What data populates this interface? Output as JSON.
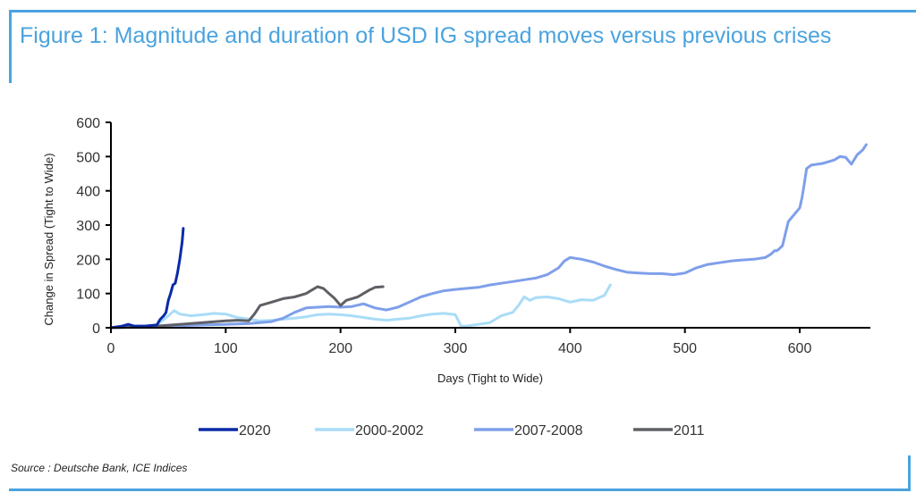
{
  "figure": {
    "title": "Figure 1: Magnitude and duration of USD IG spread moves versus previous crises",
    "source": "Source : Deutsche Bank, ICE Indices"
  },
  "colors": {
    "frame": "#4aa3df",
    "title": "#4aa3df"
  },
  "chart_data": {
    "type": "line",
    "title": "Magnitude and duration of USD IG spread moves versus previous crises",
    "xlabel": "Days (Tight to Wide)",
    "ylabel": "Change in Spread (Tight to Wide)",
    "xlim": [
      0,
      660
    ],
    "ylim": [
      0,
      600
    ],
    "xticks": [
      0,
      100,
      200,
      300,
      400,
      500,
      600
    ],
    "yticks": [
      0,
      100,
      200,
      300,
      400,
      500,
      600
    ],
    "grid": false,
    "legend_position": "bottom",
    "series": [
      {
        "name": "2000-2002",
        "color": "#a9dcf7",
        "x": [
          0,
          20,
          40,
          50,
          55,
          60,
          70,
          80,
          90,
          100,
          110,
          120,
          130,
          140,
          150,
          160,
          170,
          180,
          190,
          200,
          210,
          220,
          230,
          240,
          250,
          260,
          270,
          280,
          290,
          300,
          305,
          310,
          320,
          330,
          340,
          350,
          355,
          360,
          365,
          370,
          380,
          390,
          400,
          410,
          420,
          430,
          435
        ],
        "y": [
          0,
          2,
          8,
          35,
          50,
          40,
          35,
          38,
          42,
          40,
          30,
          25,
          20,
          22,
          25,
          28,
          32,
          38,
          40,
          38,
          35,
          30,
          25,
          22,
          25,
          28,
          35,
          40,
          42,
          38,
          5,
          5,
          10,
          15,
          35,
          45,
          65,
          90,
          80,
          88,
          90,
          85,
          75,
          82,
          80,
          95,
          125
        ]
      },
      {
        "name": "2007-2008",
        "color": "#7f9fea",
        "x": [
          0,
          20,
          50,
          80,
          100,
          120,
          140,
          150,
          160,
          170,
          180,
          190,
          200,
          210,
          220,
          230,
          240,
          250,
          260,
          270,
          280,
          290,
          300,
          310,
          320,
          330,
          340,
          350,
          360,
          370,
          380,
          390,
          395,
          400,
          410,
          420,
          430,
          440,
          450,
          460,
          470,
          480,
          490,
          500,
          510,
          520,
          530,
          540,
          550,
          560,
          570,
          575,
          578,
          580,
          582,
          585,
          590,
          595,
          600,
          602,
          604,
          606,
          610,
          620,
          630,
          635,
          640,
          645,
          650,
          655,
          658
        ],
        "y": [
          0,
          2,
          5,
          8,
          10,
          12,
          18,
          28,
          45,
          58,
          60,
          62,
          60,
          62,
          70,
          58,
          52,
          60,
          75,
          90,
          100,
          108,
          112,
          115,
          118,
          125,
          130,
          135,
          140,
          145,
          155,
          175,
          195,
          205,
          200,
          192,
          180,
          170,
          162,
          160,
          158,
          158,
          155,
          160,
          175,
          185,
          190,
          195,
          198,
          200,
          205,
          215,
          225,
          225,
          230,
          240,
          310,
          330,
          350,
          380,
          420,
          465,
          475,
          480,
          490,
          500,
          498,
          478,
          505,
          520,
          535
        ]
      },
      {
        "name": "2011",
        "color": "#5f6066",
        "x": [
          0,
          20,
          40,
          60,
          80,
          100,
          110,
          120,
          125,
          130,
          140,
          150,
          160,
          170,
          175,
          180,
          185,
          190,
          195,
          200,
          205,
          210,
          215,
          220,
          225,
          230,
          237
        ],
        "y": [
          0,
          2,
          5,
          10,
          15,
          20,
          22,
          20,
          40,
          65,
          75,
          85,
          90,
          100,
          110,
          120,
          115,
          100,
          85,
          65,
          80,
          85,
          90,
          100,
          110,
          118,
          120
        ]
      },
      {
        "name": "2020",
        "color": "#0a2aa8",
        "x": [
          0,
          10,
          15,
          20,
          30,
          40,
          43,
          46,
          48,
          50,
          52,
          54,
          56,
          58,
          60,
          62,
          63
        ],
        "y": [
          0,
          5,
          10,
          5,
          5,
          8,
          25,
          35,
          45,
          80,
          100,
          125,
          130,
          160,
          200,
          250,
          290
        ]
      }
    ]
  }
}
